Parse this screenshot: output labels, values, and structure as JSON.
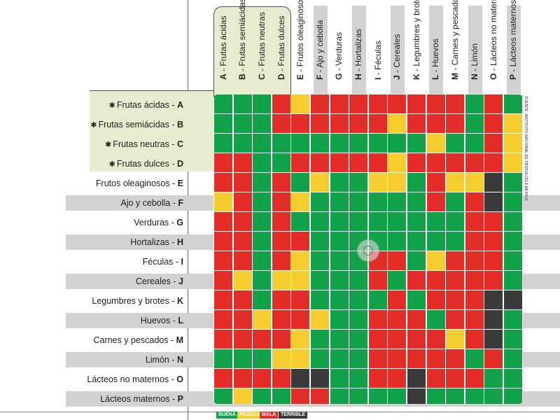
{
  "chart_data": {
    "type": "heatmap",
    "row_labels": [
      {
        "text": "Frutas ácidas",
        "code": "A",
        "star": true
      },
      {
        "text": "Frutas semiácidas",
        "code": "B",
        "star": true
      },
      {
        "text": "Frutas neutras",
        "code": "C",
        "star": true
      },
      {
        "text": "Frutas dulces",
        "code": "D",
        "star": true
      },
      {
        "text": "Frutos oleaginosos",
        "code": "E",
        "star": false
      },
      {
        "text": "Ajo y cebolla",
        "code": "F",
        "star": false
      },
      {
        "text": "Verduras",
        "code": "G",
        "star": false
      },
      {
        "text": "Hortalizas",
        "code": "H",
        "star": false
      },
      {
        "text": "Féculas",
        "code": "I",
        "star": false
      },
      {
        "text": "Cereales",
        "code": "J",
        "star": false
      },
      {
        "text": "Legumbres y brotes",
        "code": "K",
        "star": false
      },
      {
        "text": "Huevos",
        "code": "L",
        "star": false
      },
      {
        "text": "Carnes y pescados",
        "code": "M",
        "star": false
      },
      {
        "text": "Limón",
        "code": "N",
        "star": false
      },
      {
        "text": "Lácteos no maternos",
        "code": "O",
        "star": false
      },
      {
        "text": "Lácteos maternos",
        "code": "P",
        "star": false
      }
    ],
    "column_labels": [
      {
        "code": "A",
        "text": "Frutas ácidas"
      },
      {
        "code": "B",
        "text": "Frutas semiácidas"
      },
      {
        "code": "C",
        "text": "Frutas neutras"
      },
      {
        "code": "D",
        "text": "Frutas dulces"
      },
      {
        "code": "E",
        "text": "Frutos oleaginosos"
      },
      {
        "code": "F",
        "text": "Ajo y cebolla"
      },
      {
        "code": "G",
        "text": "Verduras"
      },
      {
        "code": "H",
        "text": "Hortalizas"
      },
      {
        "code": "I",
        "text": "Féculas"
      },
      {
        "code": "J",
        "text": "Cereales"
      },
      {
        "code": "K",
        "text": "Legumbres y brotes"
      },
      {
        "code": "L",
        "text": "Huevos"
      },
      {
        "code": "M",
        "text": "Carnes y pescados"
      },
      {
        "code": "N",
        "text": "Limón"
      },
      {
        "code": "O",
        "text": "Lácteos no maternos"
      },
      {
        "code": "P",
        "text": "Lácteos maternos"
      }
    ],
    "matrix": [
      [
        "G",
        "G",
        "G",
        "R",
        "Y",
        "R",
        "R",
        "R",
        "R",
        "R",
        "R",
        "R",
        "R",
        "G",
        "R",
        "G"
      ],
      [
        "G",
        "G",
        "G",
        "R",
        "R",
        "R",
        "R",
        "R",
        "R",
        "Y",
        "R",
        "R",
        "R",
        "G",
        "R",
        "Y"
      ],
      [
        "G",
        "G",
        "G",
        "G",
        "G",
        "G",
        "G",
        "G",
        "G",
        "G",
        "G",
        "Y",
        "G",
        "G",
        "R",
        "Y"
      ],
      [
        "R",
        "R",
        "G",
        "G",
        "R",
        "R",
        "R",
        "R",
        "R",
        "Y",
        "R",
        "R",
        "R",
        "R",
        "R",
        "Y"
      ],
      [
        "R",
        "R",
        "G",
        "R",
        "G",
        "Y",
        "G",
        "G",
        "Y",
        "Y",
        "G",
        "R",
        "Y",
        "Y",
        "K",
        "G"
      ],
      [
        "Y",
        "R",
        "G",
        "R",
        "Y",
        "G",
        "G",
        "G",
        "G",
        "G",
        "G",
        "R",
        "G",
        "R",
        "K",
        "G"
      ],
      [
        "R",
        "R",
        "G",
        "R",
        "G",
        "G",
        "G",
        "G",
        "G",
        "G",
        "G",
        "G",
        "G",
        "R",
        "R",
        "G"
      ],
      [
        "R",
        "R",
        "G",
        "R",
        "R",
        "G",
        "G",
        "G",
        "G",
        "G",
        "G",
        "G",
        "G",
        "R",
        "R",
        "G"
      ],
      [
        "R",
        "R",
        "G",
        "R",
        "Y",
        "G",
        "G",
        "G",
        "R",
        "R",
        "G",
        "Y",
        "R",
        "R",
        "R",
        "G"
      ],
      [
        "R",
        "Y",
        "G",
        "Y",
        "Y",
        "G",
        "G",
        "G",
        "R",
        "G",
        "R",
        "R",
        "R",
        "R",
        "R",
        "G"
      ],
      [
        "R",
        "R",
        "G",
        "R",
        "R",
        "G",
        "G",
        "G",
        "G",
        "R",
        "G",
        "R",
        "R",
        "R",
        "K",
        "K"
      ],
      [
        "R",
        "R",
        "Y",
        "R",
        "R",
        "Y",
        "G",
        "G",
        "R",
        "R",
        "R",
        "G",
        "R",
        "R",
        "K",
        "G"
      ],
      [
        "R",
        "R",
        "R",
        "R",
        "Y",
        "G",
        "G",
        "G",
        "R",
        "R",
        "R",
        "R",
        "Y",
        "R",
        "K",
        "G"
      ],
      [
        "G",
        "G",
        "G",
        "Y",
        "Y",
        "G",
        "G",
        "G",
        "R",
        "R",
        "R",
        "R",
        "R",
        "G",
        "R",
        "G"
      ],
      [
        "R",
        "R",
        "R",
        "R",
        "K",
        "K",
        "G",
        "G",
        "R",
        "R",
        "K",
        "R",
        "R",
        "R",
        "G",
        "G"
      ],
      [
        "G",
        "Y",
        "G",
        "G",
        "R",
        "R",
        "G",
        "G",
        "G",
        "G",
        "K",
        "G",
        "G",
        "G",
        "G",
        "G"
      ]
    ],
    "category_key": {
      "G": "BUENA",
      "Y": "REGULAR",
      "R": "MALA",
      "K": "TERRIBLE"
    },
    "colors": {
      "G": "#12a24a",
      "Y": "#f5cd2e",
      "R": "#e42d29",
      "K": "#3b3b3b"
    },
    "legend": [
      "BUENA",
      "REGULAR",
      "MALA",
      "TERRIBLE"
    ],
    "source": "FUENTE: INSTITUTO NACIONAL DE TROFOLOGÍA MÉXICO"
  }
}
